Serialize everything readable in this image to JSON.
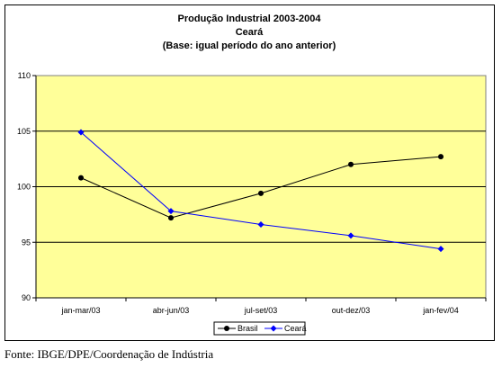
{
  "chart_data": {
    "type": "line",
    "title": [
      "Produção Industrial 2003-2004",
      "Ceará",
      "(Base: igual período do ano anterior)"
    ],
    "categories": [
      "jan-mar/03",
      "abr-jun/03",
      "jul-set/03",
      "out-dez/03",
      "jan-fev/04"
    ],
    "ylim": [
      90,
      110
    ],
    "yticks": [
      90,
      95,
      100,
      105,
      110
    ],
    "grid": true,
    "legend_position": "bottom",
    "series": [
      {
        "name": "Brasil",
        "color": "#000000",
        "marker": "circle",
        "values": [
          100.8,
          97.2,
          99.4,
          102.0,
          102.7
        ]
      },
      {
        "name": "Ceará",
        "color": "#0000ff",
        "marker": "diamond",
        "values": [
          104.9,
          97.8,
          96.6,
          95.6,
          94.4
        ]
      }
    ],
    "plot_background": "#ffff99"
  },
  "source": "Fonte: IBGE/DPE/Coordenação de Indústria"
}
